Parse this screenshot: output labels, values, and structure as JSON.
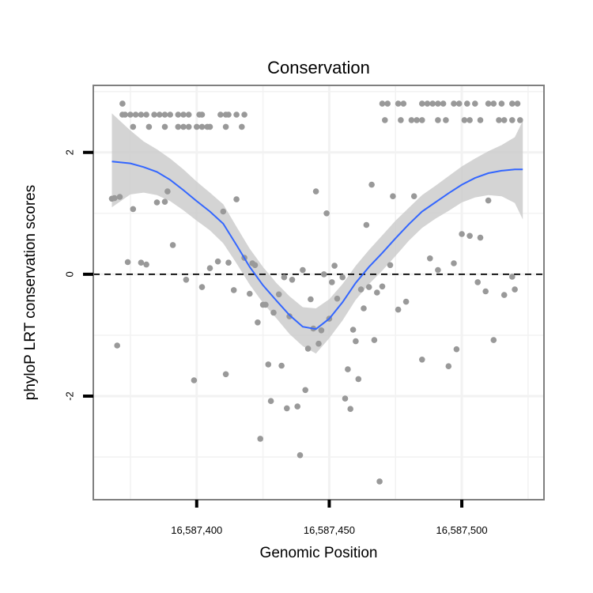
{
  "chart_data": {
    "type": "scatter",
    "title": "Conservation",
    "xlabel": "Genomic Position",
    "ylabel": "phyloP LRT conservation scores",
    "xlim": [
      16587361,
      16587531
    ],
    "ylim": [
      -3.7,
      3.1
    ],
    "x_ticks": [
      16587400,
      16587450,
      16587500
    ],
    "x_tick_labels": [
      "16,587,400",
      "16,587,450",
      "16,587,500"
    ],
    "y_ticks": [
      2,
      0,
      -2
    ],
    "y_tick_labels": [
      "2",
      "0",
      "-2"
    ],
    "grid": true,
    "reference_line_y": 0,
    "series": [
      {
        "points": [
          [
            16587368,
            1.24
          ],
          [
            16587369,
            1.25
          ],
          [
            16587370,
            -1.17
          ],
          [
            16587371,
            1.27
          ],
          [
            16587372,
            2.8
          ],
          [
            16587374,
            0.2
          ],
          [
            16587376,
            1.07
          ],
          [
            16587379,
            0.19
          ],
          [
            16587381,
            0.16
          ],
          [
            16587385,
            1.18
          ],
          [
            16587388,
            1.19
          ],
          [
            16587389,
            1.36
          ],
          [
            16587391,
            0.48
          ],
          [
            16587396,
            -0.09
          ],
          [
            16587399,
            -1.74
          ],
          [
            16587402,
            -0.21
          ],
          [
            16587405,
            0.1
          ],
          [
            16587408,
            0.21
          ],
          [
            16587410,
            1.03
          ],
          [
            16587411,
            -1.64
          ],
          [
            16587412,
            0.19
          ],
          [
            16587414,
            -0.26
          ],
          [
            16587415,
            1.23
          ],
          [
            16587418,
            0.27
          ],
          [
            16587420,
            -0.32
          ],
          [
            16587421,
            0.18
          ],
          [
            16587422,
            0.15
          ],
          [
            16587423,
            -0.79
          ],
          [
            16587424,
            -2.7
          ],
          [
            16587425,
            -0.5
          ],
          [
            16587426,
            -0.5
          ],
          [
            16587427,
            -1.48
          ],
          [
            16587428,
            -2.08
          ],
          [
            16587429,
            -0.63
          ],
          [
            16587431,
            -0.33
          ],
          [
            16587432,
            -1.5
          ],
          [
            16587433,
            -0.05
          ],
          [
            16587434,
            -2.2
          ],
          [
            16587435,
            -0.69
          ],
          [
            16587436,
            -0.09
          ],
          [
            16587438,
            -2.17
          ],
          [
            16587439,
            -2.97
          ],
          [
            16587440,
            0.07
          ],
          [
            16587441,
            -1.9
          ],
          [
            16587442,
            -1.22
          ],
          [
            16587443,
            -0.41
          ],
          [
            16587444,
            -0.89
          ],
          [
            16587445,
            1.36
          ],
          [
            16587446,
            -1.14
          ],
          [
            16587447,
            -0.92
          ],
          [
            16587448,
            0.0
          ],
          [
            16587449,
            1.0
          ],
          [
            16587450,
            -0.73
          ],
          [
            16587451,
            -0.13
          ],
          [
            16587452,
            0.14
          ],
          [
            16587453,
            -0.4
          ],
          [
            16587455,
            -0.05
          ],
          [
            16587456,
            -2.04
          ],
          [
            16587457,
            -1.56
          ],
          [
            16587458,
            -2.21
          ],
          [
            16587459,
            -0.91
          ],
          [
            16587460,
            -1.1
          ],
          [
            16587461,
            -1.72
          ],
          [
            16587462,
            -0.25
          ],
          [
            16587463,
            -0.56
          ],
          [
            16587464,
            0.81
          ],
          [
            16587465,
            -0.21
          ],
          [
            16587466,
            1.47
          ],
          [
            16587467,
            -1.08
          ],
          [
            16587468,
            -0.3
          ],
          [
            16587469,
            -3.4
          ],
          [
            16587470,
            -0.2
          ],
          [
            16587473,
            0.15
          ],
          [
            16587474,
            1.28
          ],
          [
            16587476,
            -0.58
          ],
          [
            16587479,
            -0.45
          ],
          [
            16587482,
            1.28
          ],
          [
            16587485,
            -1.4
          ],
          [
            16587488,
            0.26
          ],
          [
            16587491,
            0.07
          ],
          [
            16587495,
            -1.51
          ],
          [
            16587497,
            0.18
          ],
          [
            16587498,
            -1.23
          ],
          [
            16587500,
            0.66
          ],
          [
            16587503,
            0.63
          ],
          [
            16587506,
            -0.13
          ],
          [
            16587507,
            0.6
          ],
          [
            16587509,
            -0.28
          ],
          [
            16587510,
            1.21
          ],
          [
            16587512,
            -1.08
          ],
          [
            16587516,
            -0.34
          ],
          [
            16587519,
            -0.04
          ],
          [
            16587520,
            -0.25
          ],
          [
            16587372,
            2.62
          ],
          [
            16587373,
            2.62
          ],
          [
            16587375,
            2.62
          ],
          [
            16587377,
            2.62
          ],
          [
            16587379,
            2.62
          ],
          [
            16587381,
            2.62
          ],
          [
            16587384,
            2.62
          ],
          [
            16587386,
            2.62
          ],
          [
            16587388,
            2.62
          ],
          [
            16587390,
            2.62
          ],
          [
            16587393,
            2.62
          ],
          [
            16587395,
            2.62
          ],
          [
            16587397,
            2.62
          ],
          [
            16587401,
            2.62
          ],
          [
            16587402,
            2.62
          ],
          [
            16587409,
            2.62
          ],
          [
            16587411,
            2.62
          ],
          [
            16587412,
            2.62
          ],
          [
            16587415,
            2.62
          ],
          [
            16587418,
            2.62
          ],
          [
            16587376,
            2.42
          ],
          [
            16587382,
            2.42
          ],
          [
            16587388,
            2.42
          ],
          [
            16587393,
            2.42
          ],
          [
            16587395,
            2.42
          ],
          [
            16587397,
            2.42
          ],
          [
            16587400,
            2.42
          ],
          [
            16587402,
            2.42
          ],
          [
            16587404,
            2.42
          ],
          [
            16587405,
            2.42
          ],
          [
            16587411,
            2.42
          ],
          [
            16587417,
            2.42
          ],
          [
            16587470,
            2.8
          ],
          [
            16587472,
            2.8
          ],
          [
            16587476,
            2.8
          ],
          [
            16587478,
            2.8
          ],
          [
            16587485,
            2.8
          ],
          [
            16587487,
            2.8
          ],
          [
            16587489,
            2.8
          ],
          [
            16587491,
            2.8
          ],
          [
            16587493,
            2.8
          ],
          [
            16587497,
            2.8
          ],
          [
            16587499,
            2.8
          ],
          [
            16587502,
            2.8
          ],
          [
            16587505,
            2.8
          ],
          [
            16587510,
            2.8
          ],
          [
            16587512,
            2.8
          ],
          [
            16587515,
            2.8
          ],
          [
            16587519,
            2.8
          ],
          [
            16587521,
            2.8
          ],
          [
            16587471,
            2.53
          ],
          [
            16587477,
            2.53
          ],
          [
            16587481,
            2.53
          ],
          [
            16587483,
            2.53
          ],
          [
            16587485,
            2.53
          ],
          [
            16587491,
            2.53
          ],
          [
            16587494,
            2.53
          ],
          [
            16587501,
            2.53
          ],
          [
            16587503,
            2.53
          ],
          [
            16587507,
            2.53
          ],
          [
            16587514,
            2.53
          ],
          [
            16587516,
            2.53
          ],
          [
            16587519,
            2.53
          ],
          [
            16587522,
            2.53
          ]
        ]
      }
    ],
    "smooth": {
      "x": [
        16587368,
        16587375,
        16587380,
        16587385,
        16587390,
        16587395,
        16587400,
        16587405,
        16587410,
        16587415,
        16587420,
        16587425,
        16587430,
        16587435,
        16587440,
        16587445,
        16587450,
        16587455,
        16587460,
        16587465,
        16587470,
        16587475,
        16587480,
        16587485,
        16587490,
        16587495,
        16587500,
        16587505,
        16587510,
        16587515,
        16587520,
        16587523
      ],
      "fit": [
        1.85,
        1.82,
        1.76,
        1.68,
        1.55,
        1.38,
        1.2,
        1.03,
        0.83,
        0.48,
        0.12,
        -0.18,
        -0.43,
        -0.67,
        -0.86,
        -0.9,
        -0.73,
        -0.46,
        -0.14,
        0.12,
        0.35,
        0.59,
        0.82,
        1.03,
        1.18,
        1.33,
        1.47,
        1.58,
        1.66,
        1.7,
        1.72,
        1.72
      ],
      "lower": [
        1.1,
        1.31,
        1.34,
        1.3,
        1.2,
        1.05,
        0.88,
        0.72,
        0.51,
        0.18,
        -0.17,
        -0.47,
        -0.72,
        -0.98,
        -1.18,
        -1.3,
        -1.05,
        -0.76,
        -0.42,
        -0.16,
        0.06,
        0.3,
        0.55,
        0.76,
        0.91,
        1.04,
        1.18,
        1.26,
        1.3,
        1.28,
        1.17,
        0.9
      ],
      "upper": [
        2.64,
        2.36,
        2.18,
        2.05,
        1.9,
        1.72,
        1.52,
        1.34,
        1.15,
        0.78,
        0.42,
        0.12,
        -0.14,
        -0.36,
        -0.54,
        -0.56,
        -0.41,
        -0.16,
        0.14,
        0.4,
        0.64,
        0.88,
        1.09,
        1.3,
        1.45,
        1.61,
        1.77,
        1.9,
        2.02,
        2.12,
        2.25,
        2.52
      ]
    },
    "colors": {
      "points": "#999999",
      "smooth_line": "#3366FF",
      "ribbon": "#CCCCCC",
      "grid": "#F2F2F2",
      "panel_border": "#7F7F7F"
    }
  }
}
